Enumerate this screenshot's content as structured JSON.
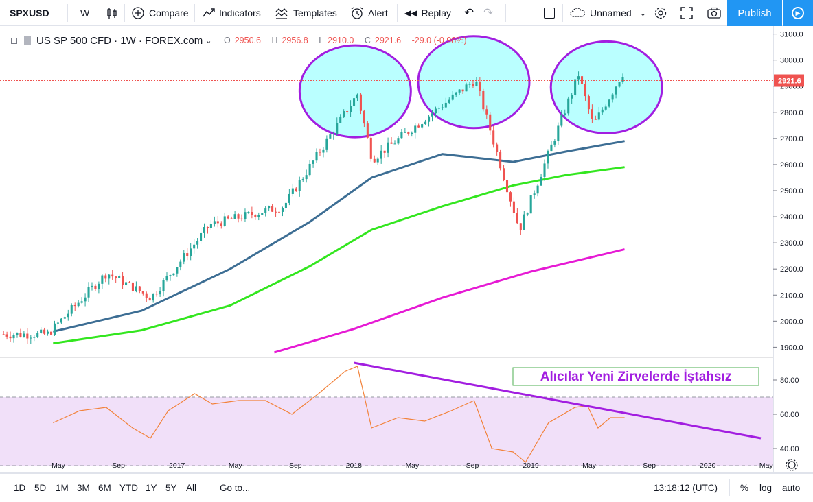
{
  "toolbar": {
    "symbol": "SPXUSD",
    "interval": "W",
    "compare": "Compare",
    "indicators": "Indicators",
    "templates": "Templates",
    "alert": "Alert",
    "replay": "Replay",
    "layout_name": "Unnamed",
    "publish": "Publish"
  },
  "legend": {
    "title": "US SP 500 CFD · 1W · FOREX.com",
    "open": "2950.6",
    "high": "2956.8",
    "low": "2910.0",
    "close": "2921.6",
    "change": "-29.0 (-0.98%)",
    "open_key": "O",
    "high_key": "H",
    "low_key": "L",
    "close_key": "C"
  },
  "annotation": "Alıcılar Yeni Zirvelerde İştahsız",
  "colors": {
    "up": "#26a69a",
    "down": "#ef5350",
    "ma_short": "#3d6e94",
    "ma_mid": "#33e61f",
    "ma_long": "#e61ad4",
    "rsi": "#f2823a",
    "rsi_band": "#f1e0f9",
    "drawing": "#a21ee0",
    "ellipse_fill": "#b3ffff",
    "annotation_border": "#4caf50"
  },
  "chart_data": [
    {
      "type": "candlestick",
      "interval": "1W",
      "ylim": [
        1880,
        3120
      ],
      "yticks": [
        1900,
        2000,
        2100,
        2200,
        2300,
        2400,
        2500,
        2600,
        2700,
        2800,
        2900,
        3000,
        3100
      ],
      "last_price": 2921.6,
      "key_closes": [
        {
          "date": "2016-04",
          "close": 1950
        },
        {
          "date": "2016-08",
          "close": 2185
        },
        {
          "date": "2016-11",
          "close": 2090
        },
        {
          "date": "2017-03",
          "close": 2370
        },
        {
          "date": "2017-08",
          "close": 2440
        },
        {
          "date": "2018-01",
          "close": 2870
        },
        {
          "date": "2018-02",
          "close": 2620
        },
        {
          "date": "2018-09",
          "close": 2925
        },
        {
          "date": "2018-12",
          "close": 2350
        },
        {
          "date": "2019-04",
          "close": 2945
        },
        {
          "date": "2019-05",
          "close": 2750
        },
        {
          "date": "2019-07",
          "close": 2950
        }
      ],
      "moving_averages": [
        {
          "color": "ma_short",
          "points": [
            [
              2016.3,
              1960
            ],
            [
              2016.8,
              2040
            ],
            [
              2017.3,
              2200
            ],
            [
              2017.75,
              2380
            ],
            [
              2018.1,
              2550
            ],
            [
              2018.5,
              2640
            ],
            [
              2018.9,
              2610
            ],
            [
              2019.2,
              2650
            ],
            [
              2019.53,
              2690
            ]
          ]
        },
        {
          "color": "ma_mid",
          "points": [
            [
              2016.3,
              1915
            ],
            [
              2016.8,
              1965
            ],
            [
              2017.3,
              2060
            ],
            [
              2017.75,
              2210
            ],
            [
              2018.1,
              2350
            ],
            [
              2018.5,
              2440
            ],
            [
              2018.9,
              2520
            ],
            [
              2019.2,
              2560
            ],
            [
              2019.53,
              2590
            ]
          ]
        },
        {
          "color": "ma_long",
          "points": [
            [
              2017.55,
              1880
            ],
            [
              2018.0,
              1970
            ],
            [
              2018.5,
              2090
            ],
            [
              2019.0,
              2190
            ],
            [
              2019.53,
              2275
            ]
          ]
        }
      ]
    },
    {
      "type": "line",
      "name": "RSI",
      "ylim": [
        28,
        92
      ],
      "yticks": [
        40,
        60,
        80
      ],
      "band": [
        30,
        70
      ],
      "points": [
        [
          2016.3,
          55
        ],
        [
          2016.45,
          62
        ],
        [
          2016.6,
          64
        ],
        [
          2016.75,
          52
        ],
        [
          2016.85,
          46
        ],
        [
          2016.95,
          62
        ],
        [
          2017.1,
          72
        ],
        [
          2017.2,
          66
        ],
        [
          2017.35,
          68
        ],
        [
          2017.5,
          68
        ],
        [
          2017.65,
          60
        ],
        [
          2017.8,
          72
        ],
        [
          2017.95,
          85
        ],
        [
          2018.02,
          88
        ],
        [
          2018.1,
          52
        ],
        [
          2018.25,
          58
        ],
        [
          2018.4,
          56
        ],
        [
          2018.55,
          62
        ],
        [
          2018.68,
          68
        ],
        [
          2018.78,
          40
        ],
        [
          2018.9,
          38
        ],
        [
          2018.97,
          32
        ],
        [
          2019.1,
          55
        ],
        [
          2019.25,
          64
        ],
        [
          2019.32,
          65
        ],
        [
          2019.38,
          52
        ],
        [
          2019.45,
          58
        ],
        [
          2019.53,
          58
        ]
      ],
      "trendline": [
        [
          2018.0,
          90
        ],
        [
          2020.3,
          46
        ]
      ]
    }
  ],
  "axes": {
    "price_labels": [
      "1900.0",
      "2000.0",
      "2100.0",
      "2200.0",
      "2300.0",
      "2400.0",
      "2500.0",
      "2600.0",
      "2700.0",
      "2800.0",
      "2900.0",
      "3000.0",
      "3100.0"
    ],
    "last_price_label": "2921.6",
    "rsi_labels": [
      "40.00",
      "60.00",
      "80.00"
    ],
    "time_labels": [
      "May",
      "Sep",
      "2017",
      "May",
      "Sep",
      "2018",
      "May",
      "Sep",
      "2019",
      "May",
      "Sep",
      "2020",
      "May"
    ],
    "time_values": [
      2016.33,
      2016.67,
      2017.0,
      2017.33,
      2017.67,
      2018.0,
      2018.33,
      2018.67,
      2019.0,
      2019.33,
      2019.67,
      2020.0,
      2020.33
    ]
  },
  "bottom": {
    "ranges": [
      "1D",
      "5D",
      "1M",
      "3M",
      "6M",
      "YTD",
      "1Y",
      "5Y",
      "All"
    ],
    "goto": "Go to...",
    "clock": "13:18:12 (UTC)",
    "pct": "%",
    "log": "log",
    "auto": "auto"
  }
}
